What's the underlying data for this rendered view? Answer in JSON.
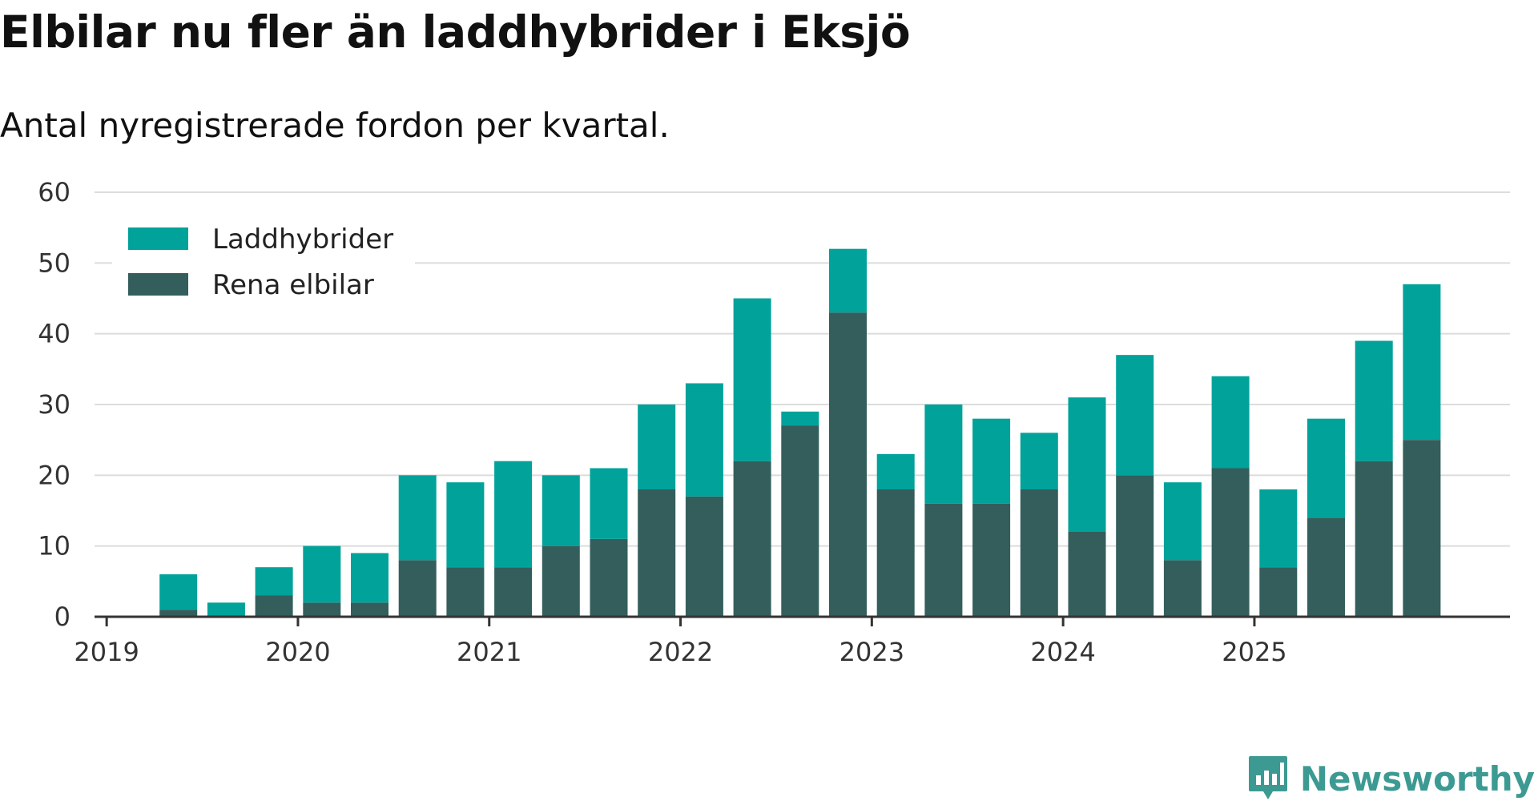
{
  "title": "Elbilar nu fler än laddhybrider i Eksjö",
  "subtitle": "Antal nyregistrerade fordon per kvartal.",
  "brand": "Newsworthy",
  "chart_data": {
    "type": "bar",
    "stacked": true,
    "categories": [
      "2019 Q1",
      "2019 Q2",
      "2019 Q3",
      "2019 Q4",
      "2020 Q1",
      "2020 Q2",
      "2020 Q3",
      "2020 Q4",
      "2021 Q1",
      "2021 Q2",
      "2021 Q3",
      "2021 Q4",
      "2022 Q1",
      "2022 Q2",
      "2022 Q3",
      "2022 Q4",
      "2023 Q1",
      "2023 Q2",
      "2023 Q3",
      "2023 Q4",
      "2024 Q1",
      "2024 Q2",
      "2024 Q3",
      "2024 Q4",
      "2025 Q1",
      "2025 Q2",
      "2025 Q3",
      "2025 Q4"
    ],
    "x_ticks": [
      "2019",
      "2020",
      "2021",
      "2022",
      "2023",
      "2024",
      "2025"
    ],
    "y_ticks": [
      0,
      10,
      20,
      30,
      40,
      50,
      60
    ],
    "ylim": [
      0,
      60
    ],
    "legend_position": "top-left",
    "grid": true,
    "series": [
      {
        "name": "Rena elbilar",
        "color": "#345e5b",
        "values": [
          0,
          1,
          0,
          3,
          2,
          2,
          8,
          7,
          7,
          10,
          11,
          18,
          17,
          22,
          27,
          43,
          18,
          16,
          16,
          18,
          12,
          20,
          8,
          21,
          7,
          14,
          22,
          25
        ]
      },
      {
        "name": "Laddhybrider",
        "color": "#00a29a",
        "values": [
          0,
          5,
          2,
          4,
          8,
          7,
          12,
          12,
          15,
          10,
          10,
          12,
          16,
          23,
          2,
          9,
          5,
          14,
          12,
          8,
          19,
          17,
          11,
          13,
          11,
          14,
          17,
          22
        ]
      }
    ]
  }
}
